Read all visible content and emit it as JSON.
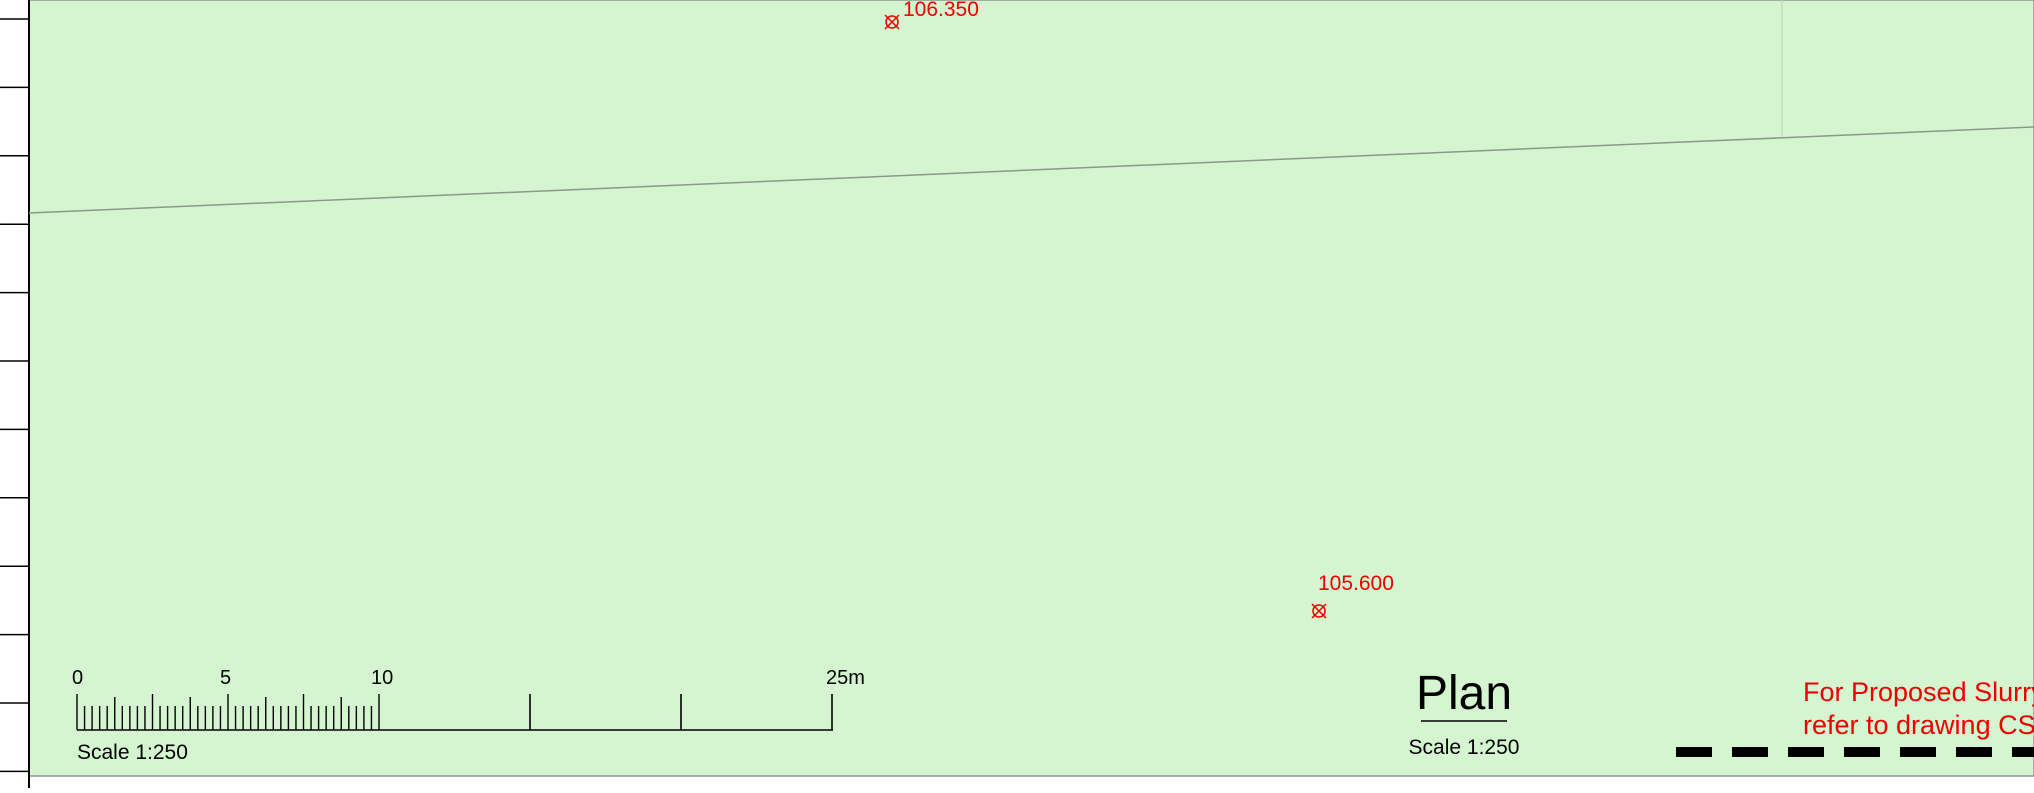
{
  "spot_levels": [
    "106.350",
    "105.600"
  ],
  "scale_bar": {
    "labels": [
      "0",
      "5",
      "10",
      "25m"
    ],
    "caption": "Scale 1:250"
  },
  "plan": {
    "title": "Plan",
    "scale": "Scale 1:250"
  },
  "note": {
    "lines": [
      "For Proposed Slurry",
      "refer to drawing CS"
    ]
  }
}
